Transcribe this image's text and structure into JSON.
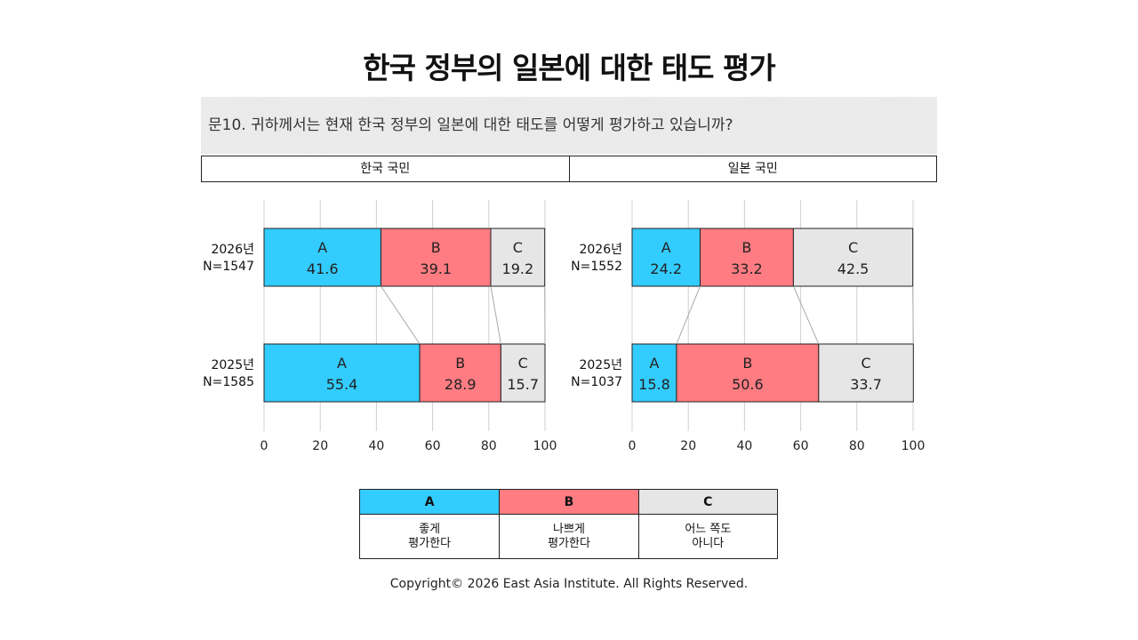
{
  "title": "한국 정부의 일본에 대한 태도 평가",
  "question": "문10. 귀하께서는 현재 한국 정부의 일본에 대한 태도를 어떻게 평가하고 있습니까?",
  "groups": [
    "한국 국민",
    "일본 국민"
  ],
  "legend": [
    {
      "key": "A",
      "label": "좋게\n평가한다",
      "color": "#33ccff"
    },
    {
      "key": "B",
      "label": "나쁘게\n평가한다",
      "color": "#ff7c82"
    },
    {
      "key": "C",
      "label": "어느 쪽도\n아니다",
      "color": "#e6e6e6"
    }
  ],
  "copyright": "Copyright© 2026 East Asia Institute. All Rights Reserved.",
  "chart_data": [
    {
      "type": "bar",
      "stacked": true,
      "orientation": "horizontal",
      "title": "한국 국민",
      "categories": [
        {
          "year": "2026년",
          "n": "N=1547"
        },
        {
          "year": "2025년",
          "n": "N=1585"
        }
      ],
      "series": [
        {
          "name": "A",
          "values": [
            41.6,
            55.4
          ]
        },
        {
          "name": "B",
          "values": [
            39.1,
            28.9
          ]
        },
        {
          "name": "C",
          "values": [
            19.2,
            15.7
          ]
        }
      ],
      "xlim": [
        0,
        100
      ],
      "xticks": [
        0,
        20,
        40,
        60,
        80,
        100
      ],
      "grid": true
    },
    {
      "type": "bar",
      "stacked": true,
      "orientation": "horizontal",
      "title": "일본 국민",
      "categories": [
        {
          "year": "2026년",
          "n": "N=1552"
        },
        {
          "year": "2025년",
          "n": "N=1037"
        }
      ],
      "series": [
        {
          "name": "A",
          "values": [
            24.2,
            15.8
          ]
        },
        {
          "name": "B",
          "values": [
            33.2,
            50.6
          ]
        },
        {
          "name": "C",
          "values": [
            42.5,
            33.7
          ]
        }
      ],
      "xlim": [
        0,
        100
      ],
      "xticks": [
        0,
        20,
        40,
        60,
        80,
        100
      ],
      "grid": true
    }
  ]
}
